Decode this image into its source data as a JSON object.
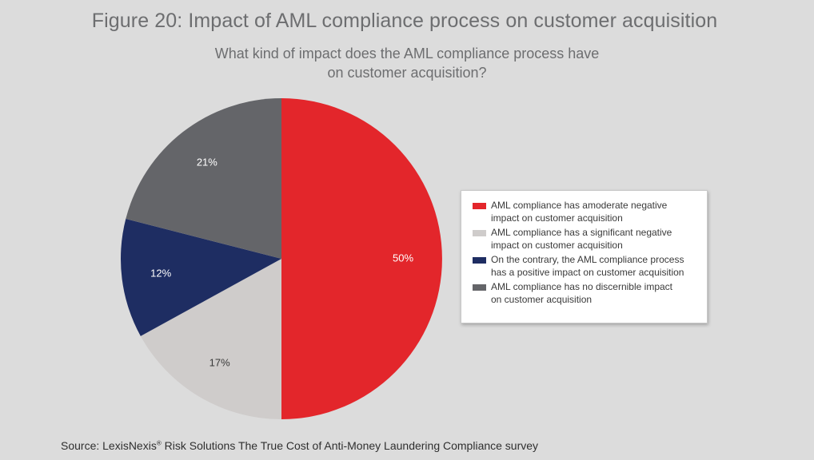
{
  "title": "Figure 20: Impact of AML compliance process on customer acquisition",
  "subtitle": {
    "line1": "What kind of impact does the AML compliance process have",
    "line2": "on customer acquisition?"
  },
  "source": {
    "prefix": "Source: LexisNexis",
    "mark": "®",
    "suffix": " Risk Solutions The True Cost of Anti-Money Laundering Compliance survey"
  },
  "chart_data": {
    "type": "pie",
    "start_angle_deg": 0,
    "direction": "clockwise",
    "slices": [
      {
        "label": "AML compliance has amoderate negative impact on customer acquisition",
        "value": 50,
        "display": "50%",
        "color": "#e3262b",
        "label_color": "#ffffff"
      },
      {
        "label": "AML compliance has a significant negative impact on customer acquisition",
        "value": 17,
        "display": "17%",
        "color": "#cfcccb",
        "label_color": "#3a3a3a"
      },
      {
        "label": "On  the contrary, the AML compliance process has a positive impact on customer acquisition",
        "value": 12,
        "display": "12%",
        "color": "#1e2d62",
        "label_color": "#ffffff"
      },
      {
        "label": "AML compliance has no discernible impact on customer acquisition",
        "value": 21,
        "display": "21%",
        "color": "#646569",
        "label_color": "#ffffff"
      }
    ]
  },
  "legend": {
    "items": [
      {
        "line1": "AML compliance has amoderate negative",
        "line2": "impact on customer acquisition",
        "color": "#e3262b"
      },
      {
        "line1": "AML compliance has a significant negative",
        "line2": "impact on customer acquisition",
        "color": "#cfcccb"
      },
      {
        "line1": "On  the contrary, the AML compliance process",
        "line2": "has a positive impact on customer acquisition",
        "color": "#1e2d62"
      },
      {
        "line1": "AML compliance has no discernible impact",
        "line2": "on customer acquisition",
        "color": "#646569"
      }
    ]
  }
}
